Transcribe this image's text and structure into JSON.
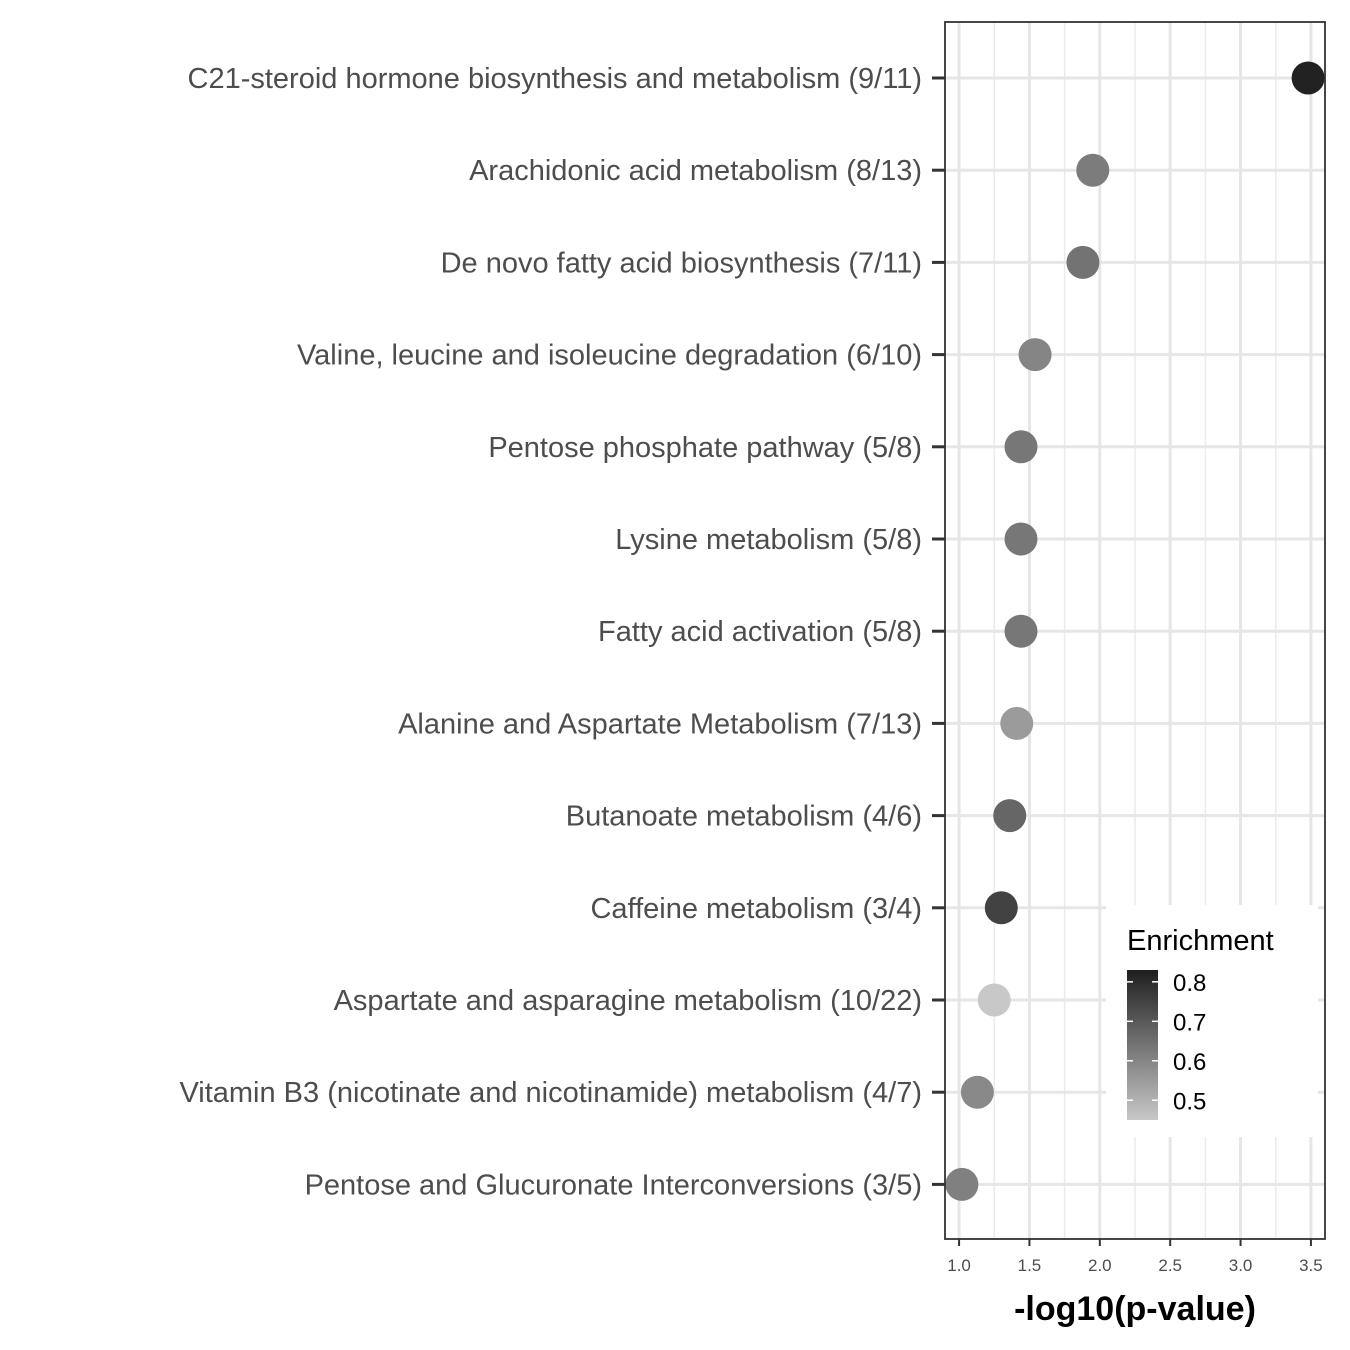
{
  "chart_data": {
    "type": "scatter",
    "title": "",
    "xlabel": "-log10(p-value)",
    "ylabel": "",
    "xlim": [
      0.9,
      3.6
    ],
    "x_ticks": [
      "1.0",
      "1.5",
      "2.0",
      "2.5",
      "3.0",
      "3.5"
    ],
    "x_tick_values": [
      1.0,
      1.5,
      2.0,
      2.5,
      3.0,
      3.5
    ],
    "grid": true,
    "points": [
      {
        "label": "C21-steroid hormone biosynthesis and metabolism (9/11)",
        "x": 3.48,
        "enrichment": 0.82
      },
      {
        "label": "Arachidonic acid metabolism (8/13)",
        "x": 1.95,
        "enrichment": 0.62
      },
      {
        "label": "De novo fatty acid biosynthesis (7/11)",
        "x": 1.88,
        "enrichment": 0.64
      },
      {
        "label": "Valine, leucine and isoleucine degradation (6/10)",
        "x": 1.54,
        "enrichment": 0.6
      },
      {
        "label": "Pentose phosphate pathway (5/8)",
        "x": 1.44,
        "enrichment": 0.63
      },
      {
        "label": "Lysine metabolism (5/8)",
        "x": 1.44,
        "enrichment": 0.63
      },
      {
        "label": "Fatty acid activation (5/8)",
        "x": 1.44,
        "enrichment": 0.63
      },
      {
        "label": "Alanine and Aspartate Metabolism (7/13)",
        "x": 1.41,
        "enrichment": 0.55
      },
      {
        "label": "Butanoate metabolism (4/6)",
        "x": 1.36,
        "enrichment": 0.67
      },
      {
        "label": "Caffeine metabolism (3/4)",
        "x": 1.3,
        "enrichment": 0.75
      },
      {
        "label": "Aspartate and asparagine metabolism (10/22)",
        "x": 1.25,
        "enrichment": 0.45
      },
      {
        "label": "Vitamin B3 (nicotinate and nicotinamide) metabolism (4/7)",
        "x": 1.13,
        "enrichment": 0.59
      },
      {
        "label": "Pentose and Glucuronate Interconversions (3/5)",
        "x": 1.02,
        "enrichment": 0.61
      }
    ],
    "legend": {
      "title": "Enrichment",
      "position": "bottom-right",
      "labels": [
        "0.8",
        "0.7",
        "0.6",
        "0.5"
      ],
      "values": [
        0.8,
        0.7,
        0.6,
        0.5
      ],
      "range": [
        0.45,
        0.83
      ],
      "color_low": "#c8c8c8",
      "color_high": "#1e1e1e"
    }
  }
}
